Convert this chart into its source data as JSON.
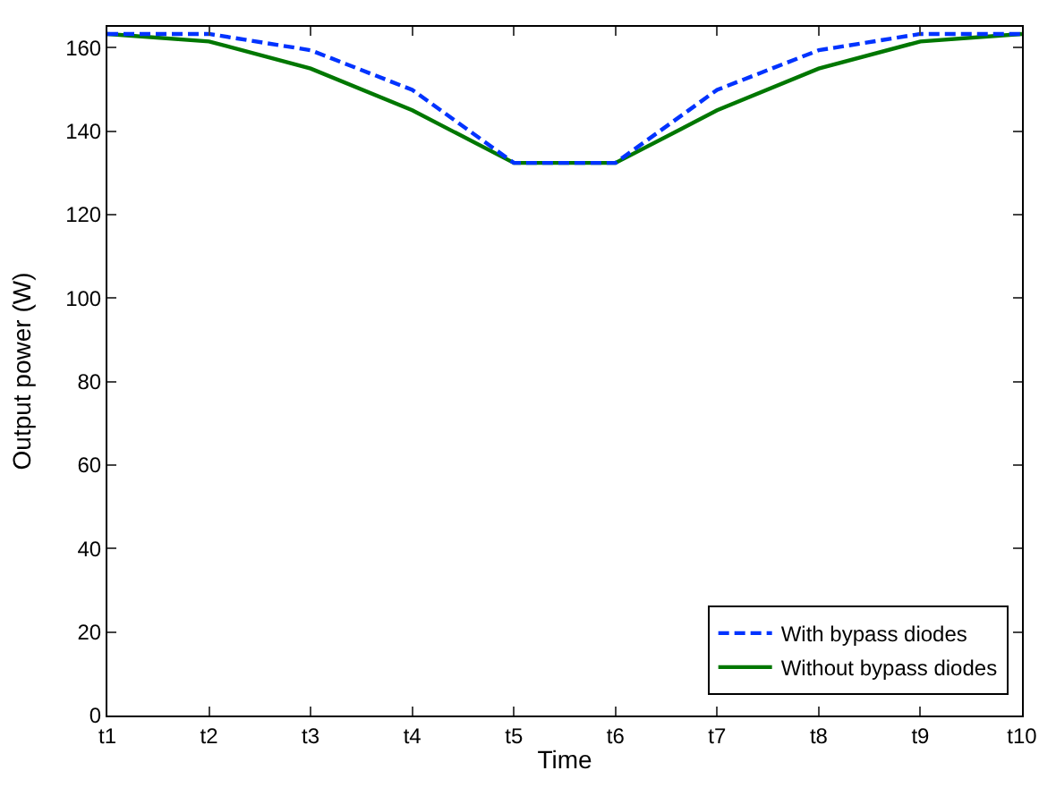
{
  "chart_data": {
    "type": "line",
    "xlabel": "Time",
    "ylabel": "Output power (W)",
    "categories": [
      "t1",
      "t2",
      "t3",
      "t4",
      "t5",
      "t6",
      "t7",
      "t8",
      "t9",
      "t10"
    ],
    "series": [
      {
        "name": "With bypass diodes",
        "color": "#0033ff",
        "line_style": "dashed",
        "values": [
          163.3,
          163.3,
          159.4,
          149.9,
          132.4,
          132.4,
          149.9,
          159.4,
          163.3,
          163.3
        ]
      },
      {
        "name": "Without bypass diodes",
        "color": "#007700",
        "line_style": "solid",
        "values": [
          163.3,
          161.5,
          155,
          145,
          132.4,
          132.4,
          145,
          155,
          161.5,
          163.3
        ]
      }
    ],
    "ylim": [
      0,
      165
    ],
    "yticks": [
      0,
      20,
      40,
      60,
      80,
      100,
      120,
      140,
      160
    ],
    "legend": "bottom right",
    "marker": "none"
  }
}
